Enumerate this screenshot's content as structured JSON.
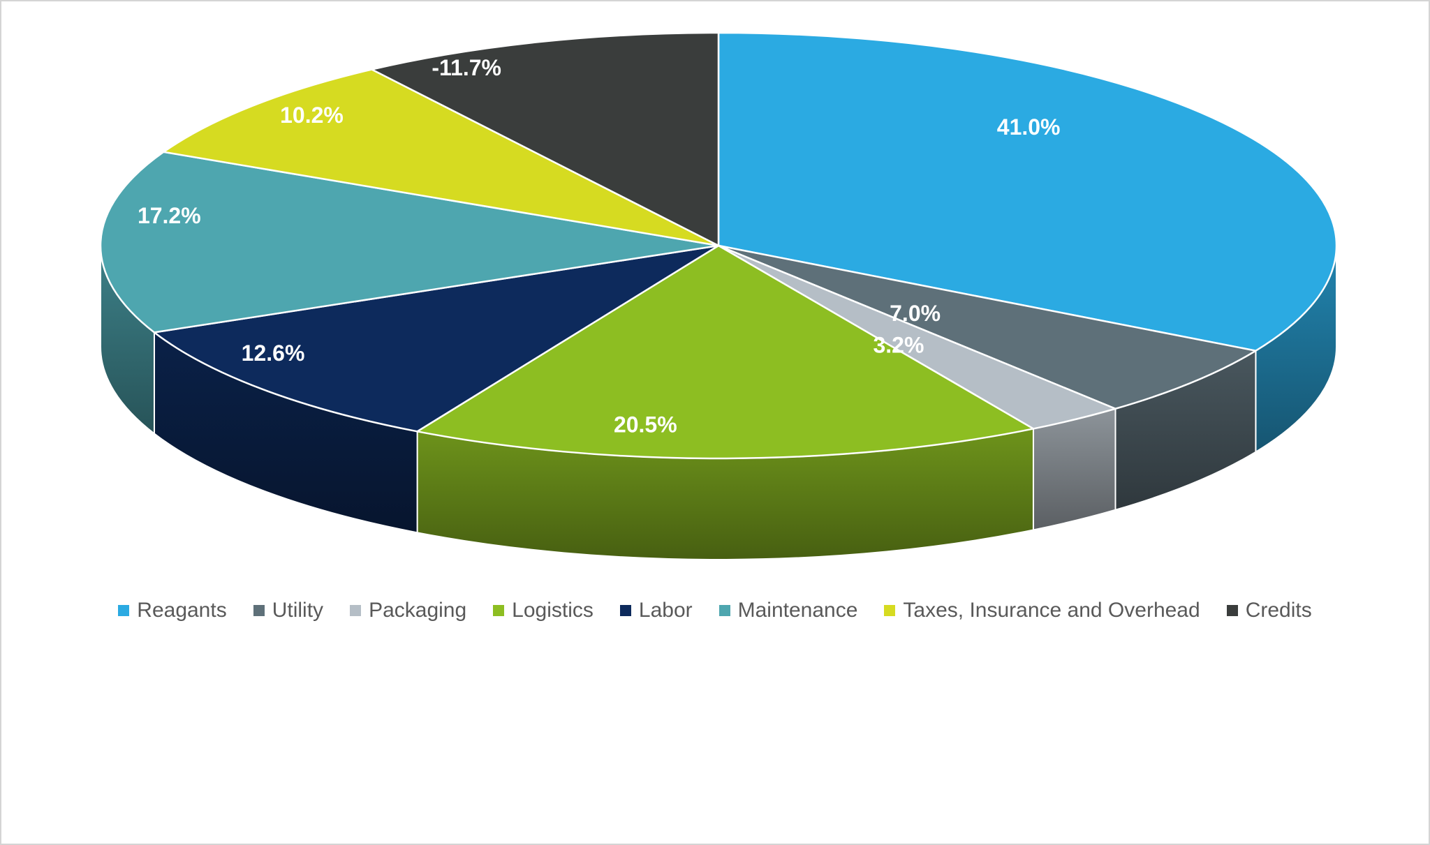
{
  "chart_data": {
    "type": "pie",
    "style": "3d",
    "title": "",
    "legend_position": "bottom",
    "label_color": "#FFFFFF",
    "legend_text_color": "#595959",
    "slices": [
      {
        "label": "Reagants",
        "value": 41.0,
        "display": "41.0%",
        "color": "#2BAAE2"
      },
      {
        "label": "Utility",
        "value": 7.0,
        "display": "7.0%",
        "color": "#5E7079"
      },
      {
        "label": "Packaging",
        "value": 3.2,
        "display": "3.2%",
        "color": "#B5BEC6"
      },
      {
        "label": "Logistics",
        "value": 20.5,
        "display": "20.5%",
        "color": "#8DBE22"
      },
      {
        "label": "Labor",
        "value": 12.6,
        "display": "12.6%",
        "color": "#0D2A5C"
      },
      {
        "label": "Maintenance",
        "value": 17.2,
        "display": "17.2%",
        "color": "#4EA6AF"
      },
      {
        "label": "Taxes, Insurance and Overhead",
        "value": 10.2,
        "display": "10.2%",
        "color": "#D6DB21"
      },
      {
        "label": "Credits",
        "value": -11.7,
        "display": "-11.7%",
        "color": "#3A3D3C"
      }
    ]
  }
}
